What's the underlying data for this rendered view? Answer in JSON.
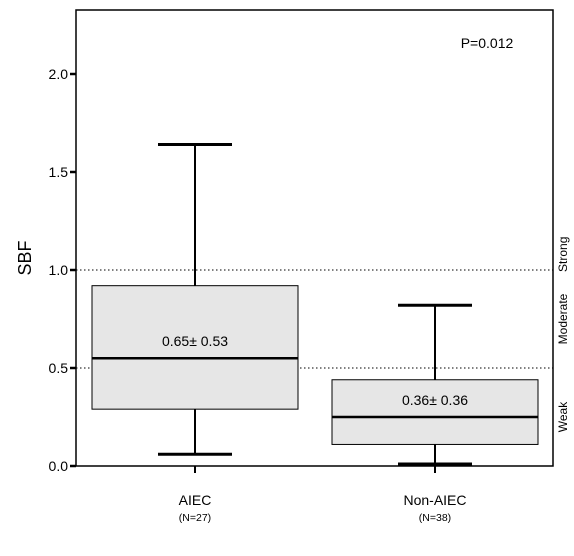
{
  "chart_data": {
    "type": "box",
    "ylabel": "SBF",
    "ylim": [
      0,
      2.3
    ],
    "yticks": [
      {
        "value": 0.0,
        "label": "0.0"
      },
      {
        "value": 0.5,
        "label": "0.5"
      },
      {
        "value": 1.0,
        "label": "1.0"
      },
      {
        "value": 1.5,
        "label": "1.5"
      },
      {
        "value": 2.0,
        "label": "2.0"
      }
    ],
    "annotation": "P=0.012",
    "thresholds": [
      0.5,
      1.0
    ],
    "zones": [
      {
        "label": "Weak",
        "from": 0.0,
        "to": 0.5
      },
      {
        "label": "Moderate",
        "from": 0.5,
        "to": 1.0
      },
      {
        "label": "Strong",
        "from": 1.0,
        "to": 2.3
      }
    ],
    "groups": [
      {
        "name": "AIEC",
        "n_label": "(N=27)",
        "whisker_low": 0.06,
        "q1": 0.29,
        "median": 0.55,
        "q3": 0.92,
        "whisker_high": 1.64,
        "mean_sd_label": "0.65± 0.53"
      },
      {
        "name": "Non-AIEC",
        "n_label": "(N=38)",
        "whisker_low": 0.01,
        "q1": 0.11,
        "median": 0.25,
        "q3": 0.44,
        "whisker_high": 0.82,
        "mean_sd_label": "0.36± 0.36"
      }
    ],
    "colors": {
      "box_fill": "#e6e6e6",
      "line": "#000000"
    }
  }
}
